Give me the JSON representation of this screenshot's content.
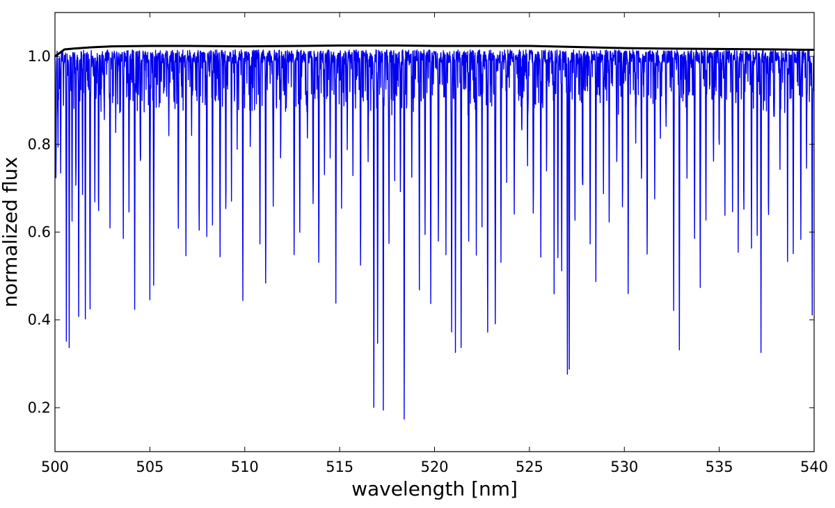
{
  "chart_data": {
    "type": "line",
    "title": "",
    "xlabel": "wavelength [nm]",
    "ylabel": "normalized flux",
    "xlim": [
      500,
      540
    ],
    "ylim": [
      0.1,
      1.1
    ],
    "x_ticks": [
      500,
      505,
      510,
      515,
      520,
      525,
      530,
      535,
      540
    ],
    "y_ticks": [
      0.2,
      0.4,
      0.6,
      0.8,
      1.0
    ],
    "y_tick_labels": [
      "0.2",
      "0.4",
      "0.6",
      "0.8",
      "1.0"
    ],
    "grid": false,
    "legend": "none",
    "series": [
      {
        "color": "#0000ee",
        "baseline": 1.0,
        "absorption_lines": [
          [
            500.05,
            0.73
          ],
          [
            500.15,
            0.86
          ],
          [
            500.3,
            0.73
          ],
          [
            500.45,
            0.94
          ],
          [
            500.6,
            0.44
          ],
          [
            500.75,
            0.43
          ],
          [
            500.9,
            0.62
          ],
          [
            501.1,
            0.78
          ],
          [
            501.25,
            0.42
          ],
          [
            501.45,
            0.69
          ],
          [
            501.6,
            0.46
          ],
          [
            501.85,
            0.41
          ],
          [
            502.1,
            0.67
          ],
          [
            502.3,
            0.64
          ],
          [
            502.6,
            0.85
          ],
          [
            502.9,
            0.62
          ],
          [
            503.2,
            0.84
          ],
          [
            503.6,
            0.58
          ],
          [
            503.9,
            0.66
          ],
          [
            504.2,
            0.46
          ],
          [
            504.5,
            0.75
          ],
          [
            505.0,
            0.49
          ],
          [
            505.2,
            0.49
          ],
          [
            505.6,
            0.93
          ],
          [
            506.0,
            0.83
          ],
          [
            506.5,
            0.6
          ],
          [
            506.9,
            0.55
          ],
          [
            507.2,
            0.84
          ],
          [
            507.6,
            0.59
          ],
          [
            508.0,
            0.58
          ],
          [
            508.3,
            0.62
          ],
          [
            508.7,
            0.55
          ],
          [
            509.0,
            0.66
          ],
          [
            509.3,
            0.78
          ],
          [
            509.6,
            0.87
          ],
          [
            509.9,
            0.53
          ],
          [
            510.3,
            0.82
          ],
          [
            510.8,
            0.57
          ],
          [
            511.1,
            0.49
          ],
          [
            511.5,
            0.66
          ],
          [
            511.9,
            0.8
          ],
          [
            512.2,
            0.92
          ],
          [
            512.6,
            0.56
          ],
          [
            512.9,
            0.6
          ],
          [
            513.3,
            0.81
          ],
          [
            513.6,
            0.66
          ],
          [
            513.9,
            0.52
          ],
          [
            514.2,
            0.72
          ],
          [
            514.5,
            0.76
          ],
          [
            514.8,
            0.44
          ],
          [
            515.1,
            0.66
          ],
          [
            515.4,
            0.8
          ],
          [
            515.7,
            0.72
          ],
          [
            516.1,
            0.53
          ],
          [
            516.5,
            0.77
          ],
          [
            516.8,
            0.21
          ],
          [
            517.0,
            0.36
          ],
          [
            517.3,
            0.18
          ],
          [
            517.6,
            0.56
          ],
          [
            517.9,
            0.79
          ],
          [
            518.2,
            0.68
          ],
          [
            518.4,
            0.16
          ],
          [
            518.8,
            0.73
          ],
          [
            519.2,
            0.53
          ],
          [
            519.5,
            0.58
          ],
          [
            519.8,
            0.5
          ],
          [
            520.2,
            0.57
          ],
          [
            520.6,
            0.54
          ],
          [
            520.9,
            0.36
          ],
          [
            521.1,
            0.4
          ],
          [
            521.4,
            0.34
          ],
          [
            521.8,
            0.58
          ],
          [
            522.2,
            0.62
          ],
          [
            522.5,
            0.7
          ],
          [
            522.8,
            0.36
          ],
          [
            523.2,
            0.38
          ],
          [
            523.5,
            0.53
          ],
          [
            523.8,
            0.76
          ],
          [
            524.2,
            0.63
          ],
          [
            524.6,
            0.82
          ],
          [
            524.9,
            0.75
          ],
          [
            525.2,
            0.64
          ],
          [
            525.6,
            0.55
          ],
          [
            525.9,
            0.83
          ],
          [
            526.3,
            0.58
          ],
          [
            526.5,
            0.53
          ],
          [
            526.7,
            0.52
          ],
          [
            527.0,
            0.29
          ],
          [
            527.1,
            0.3
          ],
          [
            527.4,
            0.63
          ],
          [
            527.8,
            0.7
          ],
          [
            528.2,
            0.58
          ],
          [
            528.5,
            0.5
          ],
          [
            528.9,
            0.71
          ],
          [
            529.2,
            0.63
          ],
          [
            529.6,
            0.76
          ],
          [
            529.9,
            0.66
          ],
          [
            530.2,
            0.56
          ],
          [
            530.6,
            0.79
          ],
          [
            530.9,
            0.73
          ],
          [
            531.2,
            0.55
          ],
          [
            531.6,
            0.67
          ],
          [
            531.9,
            0.82
          ],
          [
            532.2,
            0.83
          ],
          [
            532.6,
            0.42
          ],
          [
            532.9,
            0.33
          ],
          [
            533.3,
            0.71
          ],
          [
            533.7,
            0.58
          ],
          [
            534.0,
            0.47
          ],
          [
            534.3,
            0.62
          ],
          [
            534.7,
            0.75
          ],
          [
            535.0,
            0.79
          ],
          [
            535.3,
            0.64
          ],
          [
            535.7,
            0.65
          ],
          [
            536.0,
            0.56
          ],
          [
            536.3,
            0.64
          ],
          [
            536.7,
            0.55
          ],
          [
            537.0,
            0.58
          ],
          [
            537.2,
            0.34
          ],
          [
            537.6,
            0.63
          ],
          [
            537.9,
            0.85
          ],
          [
            538.2,
            0.74
          ],
          [
            538.6,
            0.63
          ],
          [
            538.9,
            0.54
          ],
          [
            539.3,
            0.57
          ],
          [
            539.6,
            0.76
          ],
          [
            539.9,
            0.4
          ]
        ]
      },
      {
        "color": "#000000",
        "x": [
          500,
          500.5,
          501,
          502,
          503,
          505,
          507,
          510,
          513,
          515,
          518,
          520,
          523,
          525,
          528,
          530,
          532,
          535,
          538,
          540
        ],
        "y": [
          1.0,
          1.016,
          1.018,
          1.021,
          1.023,
          1.024,
          1.024,
          1.023,
          1.024,
          1.025,
          1.025,
          1.024,
          1.024,
          1.024,
          1.021,
          1.019,
          1.018,
          1.017,
          1.016,
          1.015
        ]
      }
    ]
  }
}
